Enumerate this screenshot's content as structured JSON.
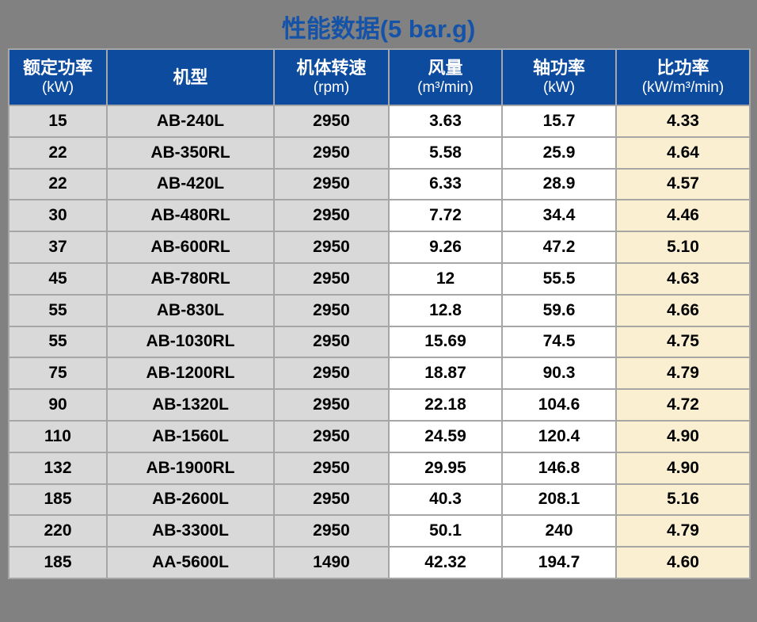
{
  "page": {
    "title": "性能数据(5 bar.g)"
  },
  "colors": {
    "page_bg": "#818181",
    "title_text": "#1553A8",
    "header_bg": "#0D4B9F",
    "header_text": "#FFFFFF",
    "border": "#A6A6A6",
    "cell_gray": "#D9D9D9",
    "cell_white": "#FFFFFF",
    "cell_cream": "#FBEFD2",
    "cell_text": "#000000"
  },
  "table": {
    "columns": [
      {
        "label": "额定功率",
        "unit": "(kW)"
      },
      {
        "label": "机型",
        "unit": ""
      },
      {
        "label": "机体转速",
        "unit": "(rpm)"
      },
      {
        "label": "风量",
        "unit": "(m³/min)"
      },
      {
        "label": "轴功率",
        "unit": "(kW)"
      },
      {
        "label": "比功率",
        "unit": "(kW/m³/min)"
      }
    ],
    "rows": [
      [
        "15",
        "AB-240L",
        "2950",
        "3.63",
        "15.7",
        "4.33"
      ],
      [
        "22",
        "AB-350RL",
        "2950",
        "5.58",
        "25.9",
        "4.64"
      ],
      [
        "22",
        "AB-420L",
        "2950",
        "6.33",
        "28.9",
        "4.57"
      ],
      [
        "30",
        "AB-480RL",
        "2950",
        "7.72",
        "34.4",
        "4.46"
      ],
      [
        "37",
        "AB-600RL",
        "2950",
        "9.26",
        "47.2",
        "5.10"
      ],
      [
        "45",
        "AB-780RL",
        "2950",
        "12",
        "55.5",
        "4.63"
      ],
      [
        "55",
        "AB-830L",
        "2950",
        "12.8",
        "59.6",
        "4.66"
      ],
      [
        "55",
        "AB-1030RL",
        "2950",
        "15.69",
        "74.5",
        "4.75"
      ],
      [
        "75",
        "AB-1200RL",
        "2950",
        "18.87",
        "90.3",
        "4.79"
      ],
      [
        "90",
        "AB-1320L",
        "2950",
        "22.18",
        "104.6",
        "4.72"
      ],
      [
        "110",
        "AB-1560L",
        "2950",
        "24.59",
        "120.4",
        "4.90"
      ],
      [
        "132",
        "AB-1900RL",
        "2950",
        "29.95",
        "146.8",
        "4.90"
      ],
      [
        "185",
        "AB-2600L",
        "2950",
        "40.3",
        "208.1",
        "5.16"
      ],
      [
        "220",
        "AB-3300L",
        "2950",
        "50.1",
        "240",
        "4.79"
      ],
      [
        "185",
        "AA-5600L",
        "1490",
        "42.32",
        "194.7",
        "4.60"
      ]
    ]
  }
}
